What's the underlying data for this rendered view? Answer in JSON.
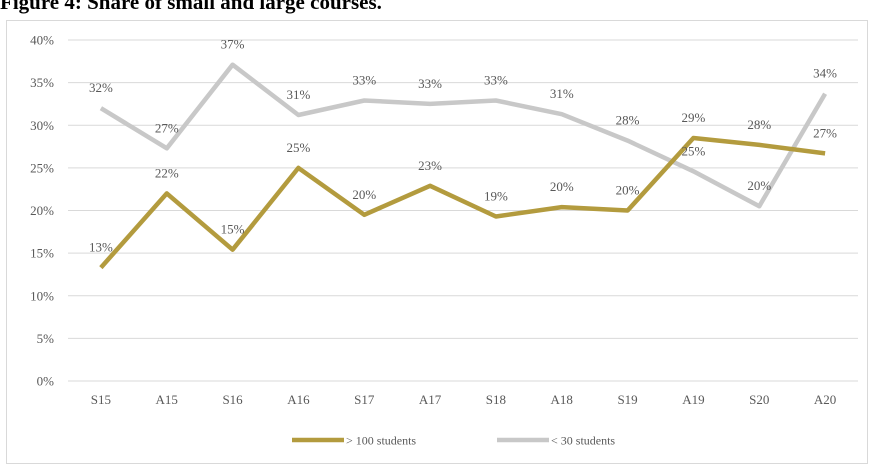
{
  "figure": {
    "title": "Figure 4: Share of small and large courses."
  },
  "chart_data": {
    "type": "line",
    "title": "",
    "xlabel": "",
    "ylabel": "",
    "categories": [
      "S15",
      "A15",
      "S16",
      "A16",
      "S17",
      "A17",
      "S18",
      "A18",
      "S19",
      "A19",
      "S20",
      "A20"
    ],
    "ylim": [
      0,
      40
    ],
    "yticks": [
      0,
      5,
      10,
      15,
      20,
      25,
      30,
      35,
      40
    ],
    "ytick_labels": [
      "0%",
      "5%",
      "10%",
      "15%",
      "20%",
      "25%",
      "30%",
      "35%",
      "40%"
    ],
    "grid": true,
    "legend_position": "bottom",
    "series": [
      {
        "name": "> 100 students",
        "color": "#b39b3e",
        "values": [
          13.3,
          22.0,
          15.4,
          25.0,
          19.5,
          22.9,
          19.3,
          20.4,
          20.0,
          28.5,
          27.7,
          26.7
        ],
        "labels": [
          "13%",
          "22%",
          "15%",
          "25%",
          "20%",
          "23%",
          "19%",
          "20%",
          "20%",
          "29%",
          "28%",
          "27%"
        ]
      },
      {
        "name": "< 30 students",
        "color": "#c8c8c8",
        "values": [
          32.0,
          27.3,
          37.1,
          31.2,
          32.9,
          32.5,
          32.9,
          31.3,
          28.2,
          24.6,
          20.5,
          33.7
        ],
        "labels": [
          "32%",
          "27%",
          "37%",
          "31%",
          "33%",
          "33%",
          "33%",
          "31%",
          "28%",
          "25%",
          "20%",
          "34%"
        ]
      }
    ]
  }
}
